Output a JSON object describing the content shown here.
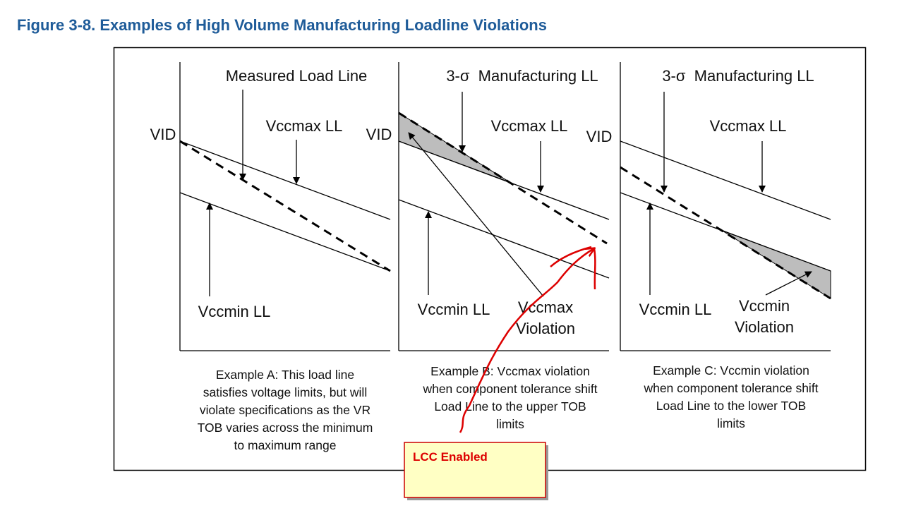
{
  "title": "Figure 3-8. Examples of High Volume Manufacturing Loadline Violations",
  "panels": [
    {
      "top_label": "Measured Load Line",
      "vccmax_label": "Vccmax LL",
      "vid_label": "VID",
      "vccmin_label": "Vccmin LL",
      "caption": [
        "Example A: This load line",
        "satisfies voltage limits, but will",
        "violate specifications as the VR",
        "TOB varies across the minimum",
        "to maximum range"
      ]
    },
    {
      "top_label": "3-σ  Manufacturing LL",
      "vccmax_label": "Vccmax LL",
      "vid_label": "VID",
      "vccmin_label": "Vccmin LL",
      "violation_label": [
        "Vccmax",
        "Violation"
      ],
      "caption": [
        "Example B: Vccmax violation",
        "when component tolerance shift",
        "Load Line to the upper TOB",
        "limits"
      ]
    },
    {
      "top_label": "3-σ  Manufacturing LL",
      "vccmax_label": "Vccmax LL",
      "vid_label": "VID",
      "vccmin_label": "Vccmin LL",
      "violation_label": [
        "Vccmin",
        "Violation"
      ],
      "caption": [
        "Example C: Vccmin violation",
        "when component tolerance shift",
        "Load Line to the lower TOB",
        "limits"
      ]
    }
  ],
  "note": "LCC Enabled"
}
